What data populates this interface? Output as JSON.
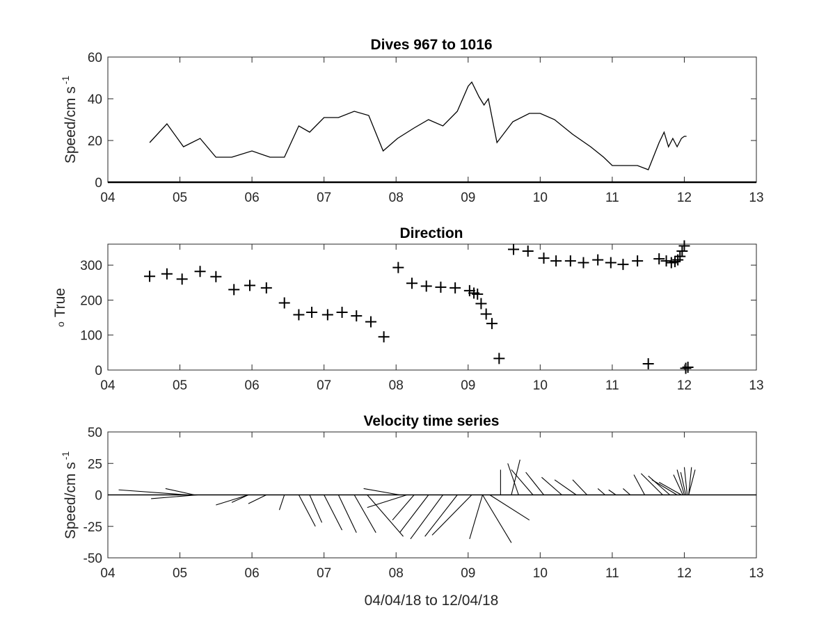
{
  "chart_data": [
    {
      "type": "line",
      "title": "Dives 967 to 1016",
      "ylabel": "Speed/cm s",
      "ylabel_superscript": "-1",
      "xlim": [
        4,
        13
      ],
      "ylim": [
        0,
        60
      ],
      "xtick_labels": [
        "04",
        "05",
        "06",
        "07",
        "08",
        "09",
        "10",
        "11",
        "12",
        "13"
      ],
      "ytick_labels": [
        "0",
        "20",
        "40",
        "60"
      ],
      "x": [
        4.58,
        4.82,
        5.05,
        5.28,
        5.5,
        5.72,
        6.0,
        6.25,
        6.45,
        6.65,
        6.8,
        7.0,
        7.2,
        7.42,
        7.62,
        7.82,
        8.02,
        8.25,
        8.45,
        8.65,
        8.85,
        9.0,
        9.05,
        9.15,
        9.22,
        9.28,
        9.4,
        9.62,
        9.85,
        10.0,
        10.2,
        10.45,
        10.7,
        10.88,
        11.0,
        11.2,
        11.35,
        11.5,
        11.65,
        11.72,
        11.78,
        11.84,
        11.9,
        11.96,
        12.0,
        12.03
      ],
      "series": [
        {
          "values": [
            19,
            28,
            17,
            21,
            12,
            12,
            15,
            12,
            12,
            27,
            24,
            31,
            31,
            34,
            32,
            15,
            21,
            26,
            30,
            27,
            34,
            46,
            48,
            41,
            37,
            40,
            19,
            29,
            33,
            33,
            30,
            23,
            17,
            12,
            8,
            8,
            8,
            6,
            19,
            24,
            17,
            21,
            17,
            21,
            22,
            22
          ]
        }
      ]
    },
    {
      "type": "scatter",
      "title": "Direction",
      "ylabel": "True",
      "ylabel_prefix": "o",
      "xlim": [
        4,
        13
      ],
      "ylim": [
        0,
        360
      ],
      "xtick_labels": [
        "04",
        "05",
        "06",
        "07",
        "08",
        "09",
        "10",
        "11",
        "12",
        "13"
      ],
      "ytick_labels": [
        "0",
        "100",
        "200",
        "300"
      ],
      "marker": "+",
      "x": [
        4.58,
        4.82,
        5.03,
        5.28,
        5.5,
        5.75,
        5.97,
        6.2,
        6.45,
        6.65,
        6.83,
        7.05,
        7.25,
        7.45,
        7.65,
        7.83,
        8.03,
        8.22,
        8.42,
        8.62,
        8.82,
        9.02,
        9.08,
        9.13,
        9.18,
        9.25,
        9.33,
        9.43,
        9.63,
        9.83,
        10.05,
        10.22,
        10.42,
        10.6,
        10.8,
        10.98,
        11.15,
        11.35,
        11.5,
        11.65,
        11.75,
        11.82,
        11.87,
        11.91,
        11.94,
        11.97,
        12.0,
        12.02,
        12.05
      ],
      "y": [
        268,
        275,
        260,
        282,
        267,
        230,
        242,
        235,
        192,
        158,
        165,
        158,
        165,
        155,
        138,
        95,
        293,
        248,
        240,
        237,
        235,
        227,
        220,
        217,
        190,
        160,
        133,
        33,
        345,
        340,
        320,
        312,
        312,
        307,
        315,
        307,
        302,
        312,
        18,
        318,
        312,
        307,
        310,
        315,
        325,
        340,
        355,
        5,
        8
      ]
    },
    {
      "type": "vector",
      "title": "Velocity time series",
      "ylabel": "Speed/cm s",
      "ylabel_superscript": "-1",
      "xlabel": "04/04/18 to 12/04/18",
      "xlim": [
        4,
        13
      ],
      "ylim": [
        -50,
        50
      ],
      "xtick_labels": [
        "04",
        "05",
        "06",
        "07",
        "08",
        "09",
        "10",
        "11",
        "12",
        "13"
      ],
      "ytick_labels": [
        "-50",
        "-25",
        "0",
        "25",
        "50"
      ],
      "vectors": [
        {
          "x": 5.1,
          "tip_x": 4.15,
          "tip_y": 4
        },
        {
          "x": 5.25,
          "tip_x": 4.6,
          "tip_y": -3
        },
        {
          "x": 5.2,
          "tip_x": 4.8,
          "tip_y": 5
        },
        {
          "x": 5.95,
          "tip_x": 5.5,
          "tip_y": -8
        },
        {
          "x": 5.95,
          "tip_x": 5.72,
          "tip_y": -6
        },
        {
          "x": 6.2,
          "tip_x": 5.95,
          "tip_y": -7
        },
        {
          "x": 6.45,
          "tip_x": 6.38,
          "tip_y": -12
        },
        {
          "x": 6.65,
          "tip_x": 6.88,
          "tip_y": -25
        },
        {
          "x": 6.8,
          "tip_x": 6.97,
          "tip_y": -22
        },
        {
          "x": 7.0,
          "tip_x": 7.25,
          "tip_y": -28
        },
        {
          "x": 7.2,
          "tip_x": 7.45,
          "tip_y": -30
        },
        {
          "x": 7.42,
          "tip_x": 7.72,
          "tip_y": -30
        },
        {
          "x": 7.6,
          "tip_x": 8.1,
          "tip_y": -33
        },
        {
          "x": 8.05,
          "tip_x": 7.55,
          "tip_y": 5
        },
        {
          "x": 8.15,
          "tip_x": 7.6,
          "tip_y": -10
        },
        {
          "x": 8.25,
          "tip_x": 7.95,
          "tip_y": -20
        },
        {
          "x": 8.45,
          "tip_x": 8.05,
          "tip_y": -30
        },
        {
          "x": 8.65,
          "tip_x": 8.2,
          "tip_y": -35
        },
        {
          "x": 8.85,
          "tip_x": 8.4,
          "tip_y": -33
        },
        {
          "x": 9.05,
          "tip_x": 8.5,
          "tip_y": -32
        },
        {
          "x": 9.2,
          "tip_x": 9.02,
          "tip_y": -35
        },
        {
          "x": 9.2,
          "tip_x": 9.6,
          "tip_y": -38
        },
        {
          "x": 9.3,
          "tip_x": 9.85,
          "tip_y": -20
        },
        {
          "x": 9.45,
          "tip_x": 9.45,
          "tip_y": 20
        },
        {
          "x": 9.6,
          "tip_x": 9.72,
          "tip_y": 28
        },
        {
          "x": 9.7,
          "tip_x": 9.55,
          "tip_y": 25
        },
        {
          "x": 9.9,
          "tip_x": 9.6,
          "tip_y": 20
        },
        {
          "x": 10.05,
          "tip_x": 9.8,
          "tip_y": 18
        },
        {
          "x": 10.3,
          "tip_x": 10.02,
          "tip_y": 14
        },
        {
          "x": 10.5,
          "tip_x": 10.2,
          "tip_y": 12
        },
        {
          "x": 10.65,
          "tip_x": 10.45,
          "tip_y": 12
        },
        {
          "x": 10.9,
          "tip_x": 10.8,
          "tip_y": 5
        },
        {
          "x": 11.05,
          "tip_x": 10.95,
          "tip_y": 4
        },
        {
          "x": 11.25,
          "tip_x": 11.15,
          "tip_y": 5
        },
        {
          "x": 11.45,
          "tip_x": 11.3,
          "tip_y": 16
        },
        {
          "x": 11.7,
          "tip_x": 11.4,
          "tip_y": 17
        },
        {
          "x": 11.8,
          "tip_x": 11.5,
          "tip_y": 15
        },
        {
          "x": 11.9,
          "tip_x": 11.55,
          "tip_y": 12
        },
        {
          "x": 11.96,
          "tip_x": 11.65,
          "tip_y": 10
        },
        {
          "x": 11.98,
          "tip_x": 11.85,
          "tip_y": 16
        },
        {
          "x": 12.0,
          "tip_x": 11.9,
          "tip_y": 20
        },
        {
          "x": 12.02,
          "tip_x": 11.95,
          "tip_y": 18
        },
        {
          "x": 12.04,
          "tip_x": 12.0,
          "tip_y": 22
        },
        {
          "x": 12.06,
          "tip_x": 12.1,
          "tip_y": 22
        },
        {
          "x": 12.06,
          "tip_x": 12.15,
          "tip_y": 20
        }
      ]
    }
  ]
}
